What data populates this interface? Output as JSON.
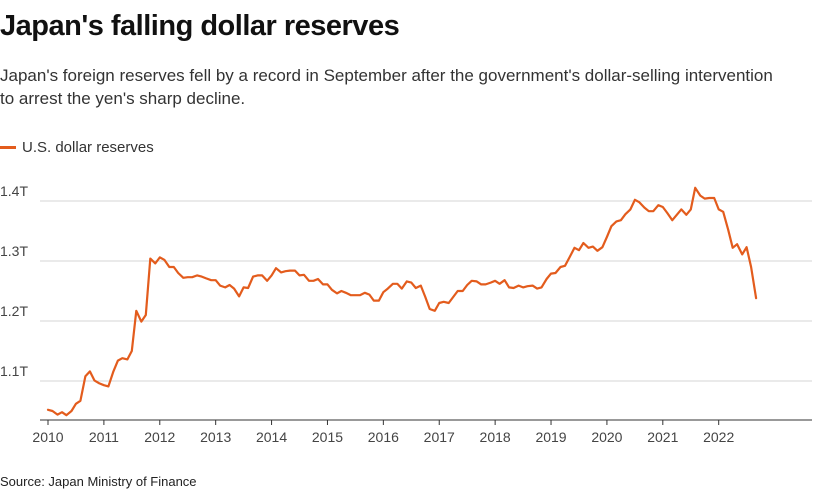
{
  "colors": {
    "line": "#e35c1d",
    "grid": "#d6d6d6",
    "axis": "#333333"
  },
  "chart_data": {
    "type": "line",
    "title": "Japan's falling dollar reserves",
    "subtitle": "Japan's foreign reserves fell by a record in September after the government's dollar-selling intervention to arrest the yen's sharp decline.",
    "source": "Source: Japan Ministry of Finance",
    "legend_position": "top-left",
    "grid": true,
    "ylim": [
      1.035,
      1.435
    ],
    "xlim": [
      2010,
      2022.9
    ],
    "y_ticks": [
      {
        "value": 1.1,
        "label": "1.1T"
      },
      {
        "value": 1.2,
        "label": "1.2T"
      },
      {
        "value": 1.3,
        "label": "1.3T"
      },
      {
        "value": 1.4,
        "label": "1.4T"
      }
    ],
    "x_ticks": [
      {
        "value": 2010,
        "label": "2010"
      },
      {
        "value": 2011,
        "label": "2011"
      },
      {
        "value": 2012,
        "label": "2012"
      },
      {
        "value": 2013,
        "label": "2013"
      },
      {
        "value": 2014,
        "label": "2014"
      },
      {
        "value": 2015,
        "label": "2015"
      },
      {
        "value": 2016,
        "label": "2016"
      },
      {
        "value": 2017,
        "label": "2017"
      },
      {
        "value": 2018,
        "label": "2018"
      },
      {
        "value": 2019,
        "label": "2019"
      },
      {
        "value": 2020,
        "label": "2020"
      },
      {
        "value": 2021,
        "label": "2021"
      },
      {
        "value": 2022,
        "label": "2022"
      }
    ],
    "series": [
      {
        "name": "U.S. dollar reserves",
        "points": [
          [
            2010.0,
            1.052
          ],
          [
            2010.08,
            1.05
          ],
          [
            2010.17,
            1.044
          ],
          [
            2010.25,
            1.048
          ],
          [
            2010.33,
            1.043
          ],
          [
            2010.42,
            1.05
          ],
          [
            2010.5,
            1.062
          ],
          [
            2010.58,
            1.067
          ],
          [
            2010.67,
            1.108
          ],
          [
            2010.75,
            1.116
          ],
          [
            2010.83,
            1.101
          ],
          [
            2010.92,
            1.096
          ],
          [
            2011.0,
            1.093
          ],
          [
            2011.08,
            1.091
          ],
          [
            2011.17,
            1.116
          ],
          [
            2011.25,
            1.134
          ],
          [
            2011.33,
            1.138
          ],
          [
            2011.42,
            1.136
          ],
          [
            2011.5,
            1.15
          ],
          [
            2011.58,
            1.217
          ],
          [
            2011.67,
            1.199
          ],
          [
            2011.75,
            1.21
          ],
          [
            2011.83,
            1.304
          ],
          [
            2011.92,
            1.296
          ],
          [
            2012.0,
            1.306
          ],
          [
            2012.08,
            1.302
          ],
          [
            2012.17,
            1.29
          ],
          [
            2012.25,
            1.29
          ],
          [
            2012.33,
            1.28
          ],
          [
            2012.42,
            1.272
          ],
          [
            2012.5,
            1.273
          ],
          [
            2012.58,
            1.273
          ],
          [
            2012.67,
            1.276
          ],
          [
            2012.75,
            1.274
          ],
          [
            2012.83,
            1.271
          ],
          [
            2012.92,
            1.268
          ],
          [
            2013.0,
            1.268
          ],
          [
            2013.08,
            1.259
          ],
          [
            2013.17,
            1.256
          ],
          [
            2013.25,
            1.26
          ],
          [
            2013.33,
            1.254
          ],
          [
            2013.42,
            1.241
          ],
          [
            2013.5,
            1.256
          ],
          [
            2013.58,
            1.255
          ],
          [
            2013.67,
            1.274
          ],
          [
            2013.75,
            1.276
          ],
          [
            2013.83,
            1.276
          ],
          [
            2013.92,
            1.267
          ],
          [
            2014.0,
            1.276
          ],
          [
            2014.08,
            1.288
          ],
          [
            2014.17,
            1.281
          ],
          [
            2014.25,
            1.283
          ],
          [
            2014.33,
            1.284
          ],
          [
            2014.42,
            1.284
          ],
          [
            2014.5,
            1.276
          ],
          [
            2014.58,
            1.277
          ],
          [
            2014.67,
            1.267
          ],
          [
            2014.75,
            1.267
          ],
          [
            2014.83,
            1.27
          ],
          [
            2014.92,
            1.261
          ],
          [
            2015.0,
            1.261
          ],
          [
            2015.08,
            1.252
          ],
          [
            2015.17,
            1.246
          ],
          [
            2015.25,
            1.25
          ],
          [
            2015.33,
            1.247
          ],
          [
            2015.42,
            1.243
          ],
          [
            2015.5,
            1.243
          ],
          [
            2015.58,
            1.243
          ],
          [
            2015.67,
            1.247
          ],
          [
            2015.75,
            1.244
          ],
          [
            2015.83,
            1.234
          ],
          [
            2015.92,
            1.234
          ],
          [
            2016.0,
            1.248
          ],
          [
            2016.08,
            1.254
          ],
          [
            2016.17,
            1.262
          ],
          [
            2016.25,
            1.262
          ],
          [
            2016.33,
            1.254
          ],
          [
            2016.42,
            1.266
          ],
          [
            2016.5,
            1.264
          ],
          [
            2016.58,
            1.255
          ],
          [
            2016.67,
            1.259
          ],
          [
            2016.75,
            1.24
          ],
          [
            2016.83,
            1.22
          ],
          [
            2016.92,
            1.217
          ],
          [
            2017.0,
            1.23
          ],
          [
            2017.08,
            1.232
          ],
          [
            2017.17,
            1.23
          ],
          [
            2017.25,
            1.24
          ],
          [
            2017.33,
            1.25
          ],
          [
            2017.42,
            1.25
          ],
          [
            2017.5,
            1.26
          ],
          [
            2017.58,
            1.267
          ],
          [
            2017.67,
            1.266
          ],
          [
            2017.75,
            1.261
          ],
          [
            2017.83,
            1.261
          ],
          [
            2017.92,
            1.264
          ],
          [
            2018.0,
            1.267
          ],
          [
            2018.08,
            1.262
          ],
          [
            2018.17,
            1.268
          ],
          [
            2018.25,
            1.256
          ],
          [
            2018.33,
            1.255
          ],
          [
            2018.42,
            1.259
          ],
          [
            2018.5,
            1.256
          ],
          [
            2018.58,
            1.258
          ],
          [
            2018.67,
            1.259
          ],
          [
            2018.75,
            1.254
          ],
          [
            2018.83,
            1.256
          ],
          [
            2018.92,
            1.27
          ],
          [
            2019.0,
            1.279
          ],
          [
            2019.08,
            1.28
          ],
          [
            2019.17,
            1.29
          ],
          [
            2019.25,
            1.292
          ],
          [
            2019.33,
            1.306
          ],
          [
            2019.42,
            1.322
          ],
          [
            2019.5,
            1.318
          ],
          [
            2019.58,
            1.33
          ],
          [
            2019.67,
            1.322
          ],
          [
            2019.75,
            1.324
          ],
          [
            2019.83,
            1.317
          ],
          [
            2019.92,
            1.323
          ],
          [
            2020.0,
            1.34
          ],
          [
            2020.08,
            1.358
          ],
          [
            2020.17,
            1.366
          ],
          [
            2020.25,
            1.368
          ],
          [
            2020.33,
            1.378
          ],
          [
            2020.42,
            1.386
          ],
          [
            2020.5,
            1.402
          ],
          [
            2020.58,
            1.398
          ],
          [
            2020.67,
            1.389
          ],
          [
            2020.75,
            1.383
          ],
          [
            2020.83,
            1.383
          ],
          [
            2020.92,
            1.393
          ],
          [
            2021.0,
            1.39
          ],
          [
            2021.08,
            1.38
          ],
          [
            2021.17,
            1.368
          ],
          [
            2021.25,
            1.377
          ],
          [
            2021.33,
            1.386
          ],
          [
            2021.42,
            1.377
          ],
          [
            2021.5,
            1.386
          ],
          [
            2021.58,
            1.422
          ],
          [
            2021.67,
            1.409
          ],
          [
            2021.75,
            1.404
          ],
          [
            2021.83,
            1.405
          ],
          [
            2021.92,
            1.405
          ],
          [
            2022.0,
            1.386
          ],
          [
            2022.08,
            1.382
          ],
          [
            2022.17,
            1.352
          ],
          [
            2022.25,
            1.322
          ],
          [
            2022.33,
            1.328
          ],
          [
            2022.42,
            1.311
          ],
          [
            2022.5,
            1.323
          ],
          [
            2022.58,
            1.29
          ],
          [
            2022.67,
            1.238
          ]
        ]
      }
    ]
  }
}
